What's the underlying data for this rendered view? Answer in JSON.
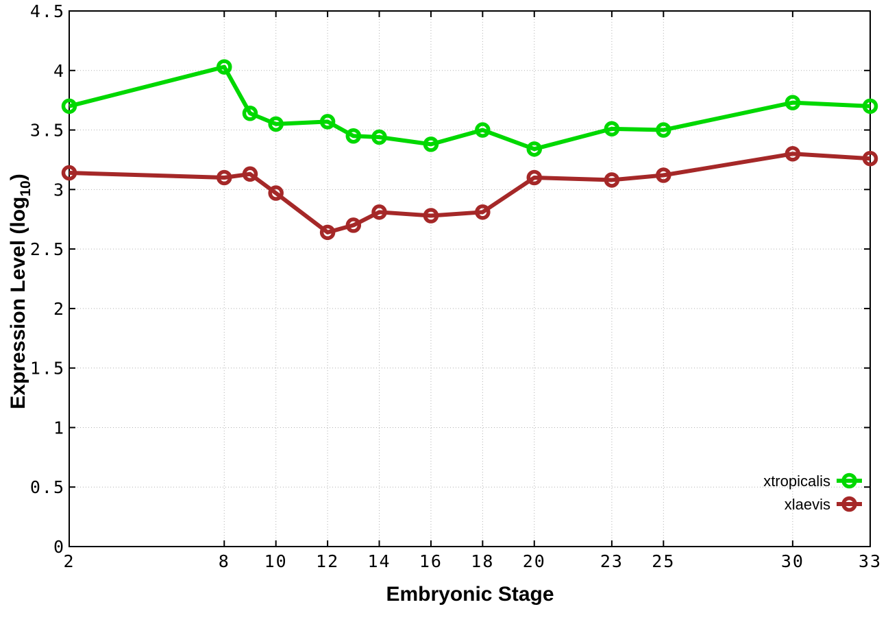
{
  "chart_data": {
    "type": "line",
    "title": "",
    "xlabel": "Embryonic Stage",
    "ylabel": {
      "text": "Expression Level (log",
      "subscript": "10",
      "suffix": ")"
    },
    "xlim": [
      2,
      33
    ],
    "ylim": [
      0,
      4.5
    ],
    "grid": true,
    "legend_position": "bottom-right",
    "marker": "open-circle",
    "axis_color": "#000000",
    "grid_color": "#b0b0b0",
    "background": "#ffffff",
    "x": [
      2,
      8,
      9,
      10,
      12,
      13,
      14,
      16,
      18,
      20,
      23,
      25,
      30,
      33
    ],
    "xtick_values": [
      2,
      8,
      10,
      12,
      14,
      16,
      18,
      20,
      23,
      25,
      30,
      33
    ],
    "xtick_labels": [
      "2",
      "8",
      "10",
      "12",
      "14",
      "16",
      "18",
      "20",
      "23",
      "25",
      "30",
      "33"
    ],
    "ytick_values": [
      0,
      0.5,
      1,
      1.5,
      2,
      2.5,
      3,
      3.5,
      4,
      4.5
    ],
    "ytick_labels": [
      "0",
      "0.5",
      "1",
      "1.5",
      "2",
      "2.5",
      "3",
      "3.5",
      "4",
      "4.5"
    ],
    "series": [
      {
        "name": "xtropicalis",
        "color": "#00d800",
        "values": [
          3.7,
          4.03,
          3.64,
          3.55,
          3.57,
          3.45,
          3.44,
          3.38,
          3.5,
          3.34,
          3.51,
          3.5,
          3.73,
          3.7
        ]
      },
      {
        "name": "xlaevis",
        "color": "#a52828",
        "values": [
          3.14,
          3.1,
          3.13,
          2.97,
          2.64,
          2.7,
          2.81,
          2.78,
          2.81,
          3.1,
          3.08,
          3.12,
          3.3,
          3.26
        ]
      }
    ]
  }
}
